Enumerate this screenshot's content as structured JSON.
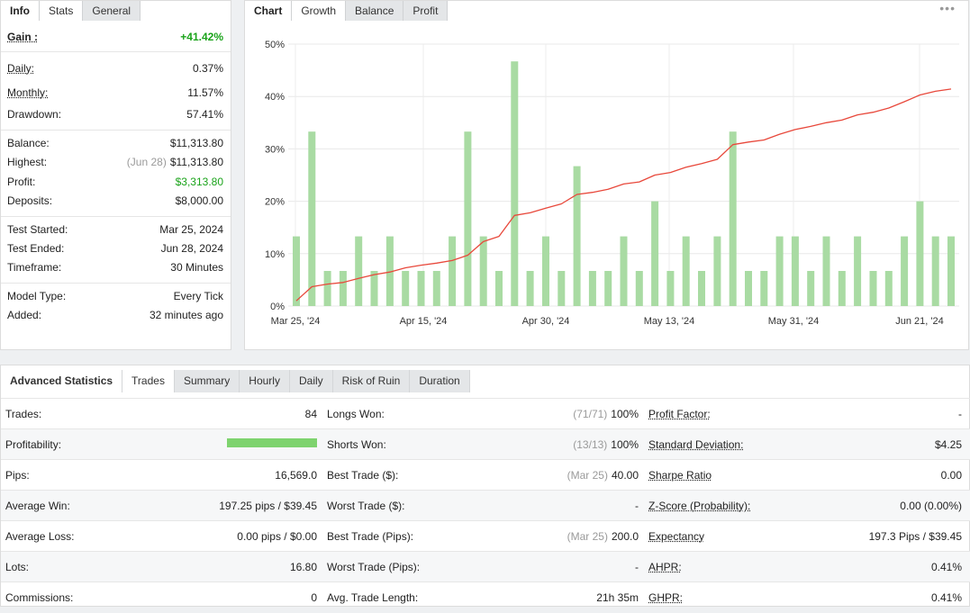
{
  "left_tabs": [
    "Info",
    "Stats",
    "General"
  ],
  "left_stats": [
    {
      "label": "Gain :",
      "value": "+41.42%",
      "style": "gain"
    },
    {
      "label": "Daily:",
      "value": "0.37%",
      "underline": true
    },
    {
      "label": "Monthly:",
      "value": "11.57%",
      "underline": true
    },
    {
      "label": "Drawdown:",
      "value": "57.41%"
    },
    {
      "label": "Balance:",
      "value": "$11,313.80"
    },
    {
      "label": "Highest:",
      "note": "(Jun 28)",
      "value": "$11,313.80"
    },
    {
      "label": "Profit:",
      "value": "$3,313.80",
      "style": "green"
    },
    {
      "label": "Deposits:",
      "value": "$8,000.00"
    },
    {
      "label": "Test Started:",
      "value": "Mar 25, 2024"
    },
    {
      "label": "Test Ended:",
      "value": "Jun 28, 2024"
    },
    {
      "label": "Timeframe:",
      "value": "30 Minutes"
    },
    {
      "label": "Model Type:",
      "value": "Every Tick"
    },
    {
      "label": "Added:",
      "value": "32 minutes ago"
    }
  ],
  "chart_tabs": [
    "Chart",
    "Growth",
    "Balance",
    "Profit"
  ],
  "chart_menu": "•••",
  "chart_data": {
    "type": "bar",
    "ylim": [
      0,
      50
    ],
    "yticks": [
      "0%",
      "10%",
      "20%",
      "30%",
      "40%",
      "50%"
    ],
    "xtick_labels": [
      "Mar 25, '24",
      "Apr 15, '24",
      "Apr 30, '24",
      "May 13, '24",
      "May 31, '24",
      "Jun 21, '24"
    ],
    "bar_color": "#a9dba3",
    "line_color": "#e8483b",
    "bars": [
      13.3,
      33.3,
      6.7,
      6.7,
      13.3,
      6.7,
      13.3,
      6.7,
      6.7,
      6.7,
      13.3,
      33.3,
      13.3,
      6.7,
      46.7,
      6.7,
      13.3,
      6.7,
      26.7,
      6.7,
      6.7,
      13.3,
      6.7,
      20,
      6.7,
      13.3,
      6.7,
      13.3,
      33.3,
      6.7,
      6.7,
      13.3,
      13.3,
      6.7,
      13.3,
      6.7,
      13.3,
      6.7,
      6.7,
      13.3,
      20,
      13.3,
      13.3
    ],
    "growth_line": [
      1,
      3.7,
      4.2,
      4.5,
      5.3,
      6,
      6.5,
      7.3,
      7.8,
      8.2,
      8.7,
      9.7,
      12.3,
      13.3,
      17.3,
      17.8,
      18.7,
      19.5,
      21.3,
      21.7,
      22.3,
      23.3,
      23.7,
      25,
      25.5,
      26.5,
      27.2,
      28,
      30.8,
      31.3,
      31.7,
      32.8,
      33.7,
      34.3,
      35,
      35.5,
      36.5,
      37,
      37.8,
      39,
      40.3,
      41,
      41.42
    ]
  },
  "adv_tabs": [
    "Advanced Statistics",
    "Trades",
    "Summary",
    "Hourly",
    "Daily",
    "Risk of Ruin",
    "Duration"
  ],
  "trade_rows": [
    {
      "c1l": "Trades:",
      "c1v": "84",
      "c2l": "Longs Won:",
      "c2n": "(71/71)",
      "c2v": "100%",
      "c3l": "Profit Factor:",
      "c3v": "-"
    },
    {
      "c1l": "Profitability:",
      "progress": 1.0,
      "c2l": "Shorts Won:",
      "c2n": "(13/13)",
      "c2v": "100%",
      "c3l": "Standard Deviation:",
      "c3v": "$4.25"
    },
    {
      "c1l": "Pips:",
      "c1v": "16,569.0",
      "c2l": "Best Trade ($):",
      "c2n": "(Mar 25)",
      "c2v": "40.00",
      "c3l": "Sharpe Ratio",
      "c3v": "0.00"
    },
    {
      "c1l": "Average Win:",
      "c1v": "197.25 pips / $39.45",
      "c2l": "Worst Trade ($):",
      "c2v": "-",
      "c3l": "Z-Score (Probability):",
      "c3v": "0.00 (0.00%)"
    },
    {
      "c1l": "Average Loss:",
      "c1v": "0.00 pips / $0.00",
      "c2l": "Best Trade (Pips):",
      "c2n": "(Mar 25)",
      "c2v": "200.0",
      "c3l": "Expectancy",
      "c3v": "197.3 Pips / $39.45"
    },
    {
      "c1l": "Lots:",
      "c1v": "16.80",
      "c2l": "Worst Trade (Pips):",
      "c2v": "-",
      "c3l": "AHPR:",
      "c3v": "0.41%"
    },
    {
      "c1l": "Commissions:",
      "c1v": "0",
      "c2l": "Avg. Trade Length:",
      "c2v": "21h 35m",
      "c3l": "GHPR:",
      "c3v": "0.41%"
    }
  ]
}
